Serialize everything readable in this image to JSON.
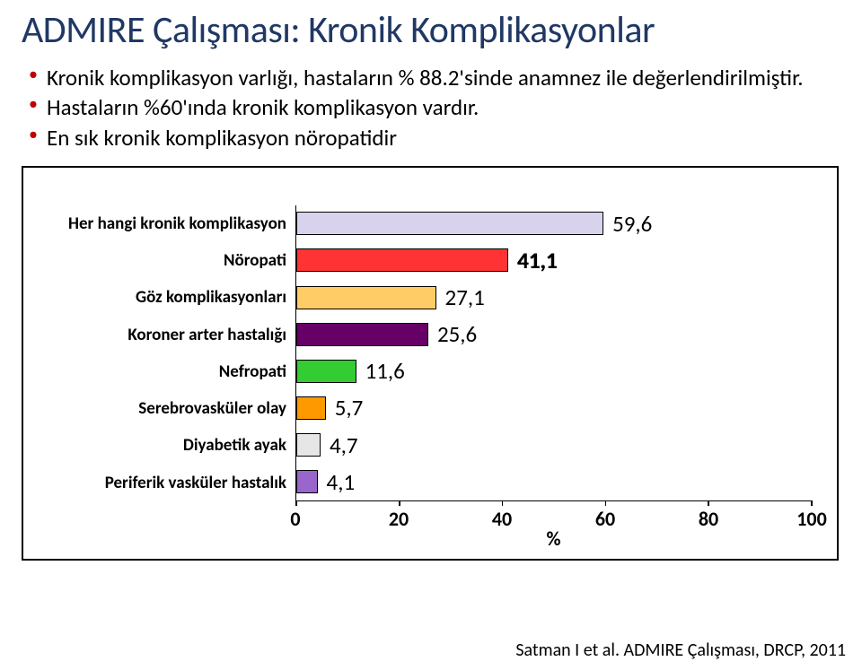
{
  "title": {
    "text": "ADMIRE Çalışması: Kronik Komplikasyonlar",
    "color": "#203864"
  },
  "bullets": {
    "marker_color": "#c00000",
    "items": [
      "Kronik komplikasyon varlığı, hastaların % 88.2'sinde anamnez ile  değerlendirilmiştir.",
      "Hastaların %60'ında kronik komplikasyon vardır.",
      "En sık kronik komplikasyon nöropatidir"
    ]
  },
  "chart": {
    "type": "bar",
    "orientation": "horizontal",
    "xlim": [
      0,
      100
    ],
    "xtick_step": 20,
    "xticks": [
      0,
      20,
      40,
      60,
      80,
      100
    ],
    "x_title": "%",
    "label_fontsize": 19,
    "value_fontsize": 25,
    "tick_fontsize": 22,
    "background_color": "#ffffff",
    "border_color": "#000000",
    "box_border_color": "#000000",
    "bars": [
      {
        "label": "Her hangi kronik komplikasyon",
        "value": 59.6,
        "value_text": "59,6",
        "color": "#d9d2ec",
        "bold": false
      },
      {
        "label": "Nöropati",
        "value": 41.1,
        "value_text": "41,1",
        "color": "#ff3333",
        "bold": true
      },
      {
        "label": "Göz komplikasyonları",
        "value": 27.1,
        "value_text": "27,1",
        "color": "#ffcc66",
        "bold": false
      },
      {
        "label": "Koroner arter hastalığı",
        "value": 25.6,
        "value_text": "25,6",
        "color": "#660066",
        "bold": false
      },
      {
        "label": "Nefropati",
        "value": 11.6,
        "value_text": "11,6",
        "color": "#33cc33",
        "bold": false
      },
      {
        "label": "Serebrovasküler olay",
        "value": 5.7,
        "value_text": "5,7",
        "color": "#ff9900",
        "bold": false
      },
      {
        "label": "Diyabetik ayak",
        "value": 4.7,
        "value_text": "4,7",
        "color": "#e6e6e6",
        "bold": false
      },
      {
        "label": "Periferik vasküler hastalık",
        "value": 4.1,
        "value_text": "4,1",
        "color": "#9966cc",
        "bold": false
      }
    ]
  },
  "citation": "Satman I et al. ADMIRE Çalışması, DRCP, 2011"
}
